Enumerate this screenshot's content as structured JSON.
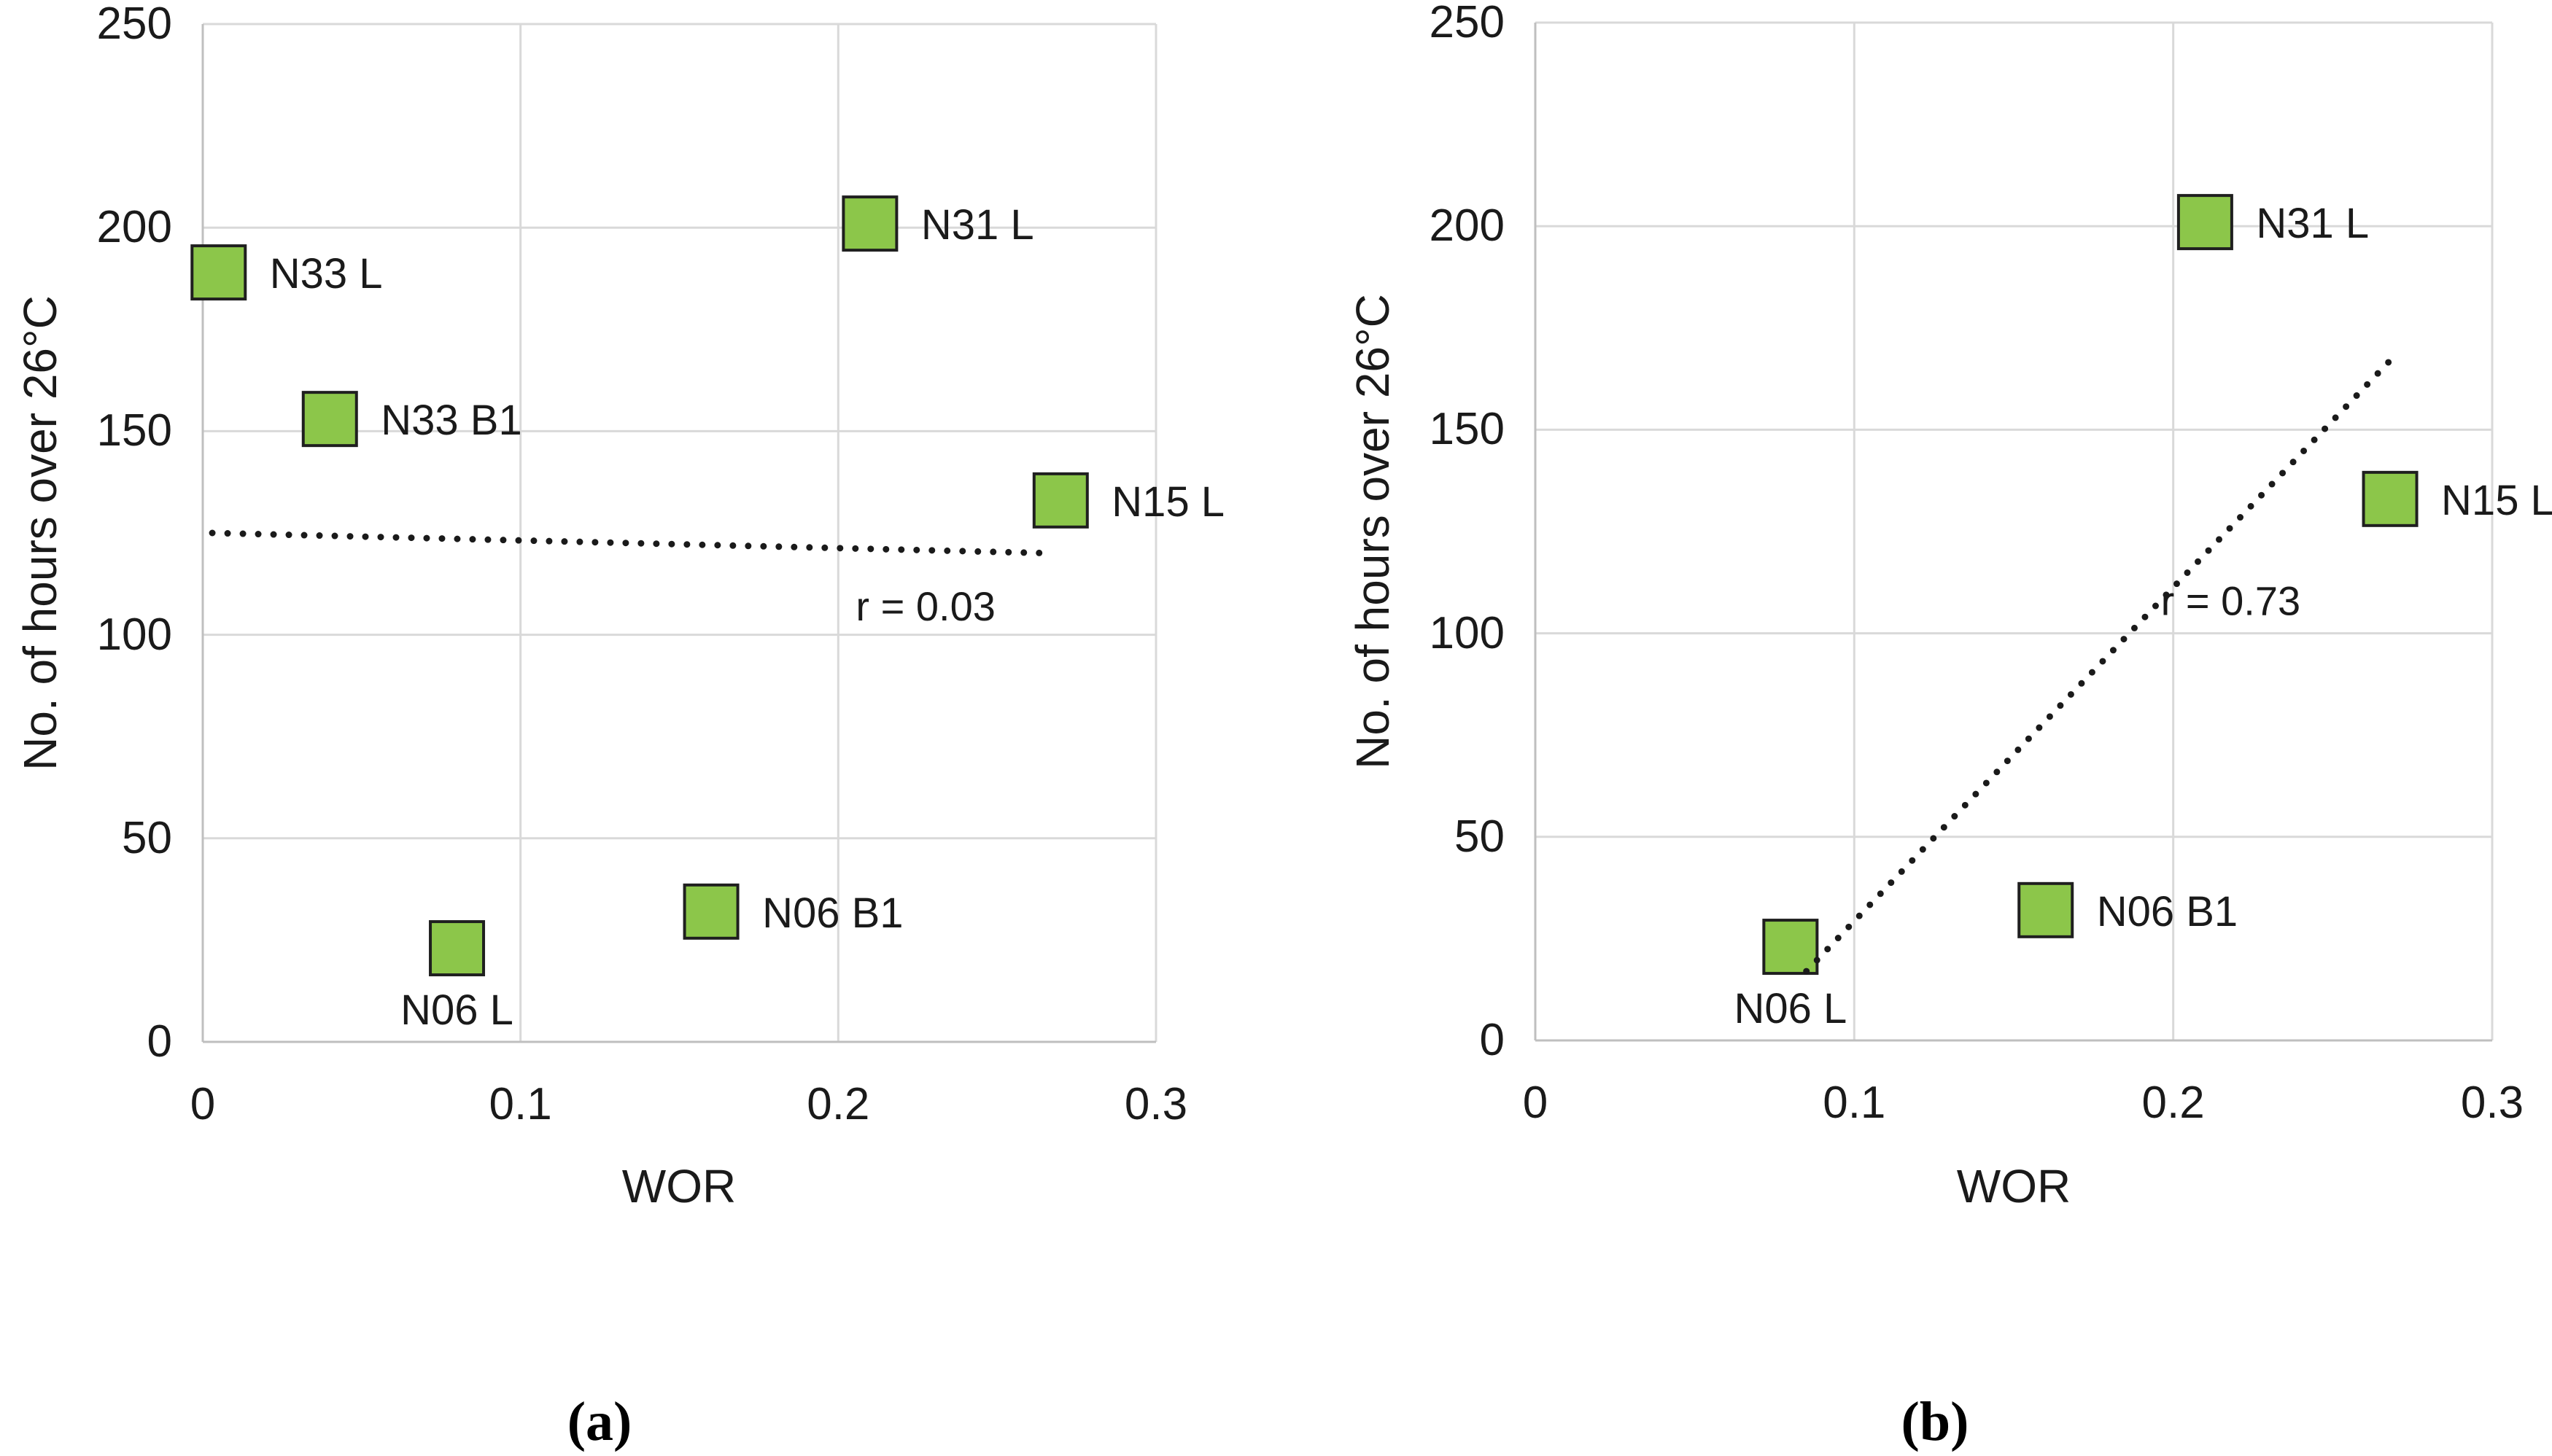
{
  "figure": {
    "background": "#ffffff",
    "panels": [
      "(a)",
      "(b)"
    ]
  },
  "style": {
    "marker_fill": "#8cc64a",
    "marker_border": "#1f1f1f",
    "grid_color": "#d9d9d9",
    "axis_color": "#bfbfbf",
    "text_color": "#1a1a1a",
    "trendline_color": "#1a1a1a"
  },
  "chart_data": [
    {
      "type": "scatter",
      "panel": "a",
      "caption": "(a)",
      "xlabel": "WOR",
      "ylabel": "No. of hours over 26°C",
      "xlim": [
        0,
        0.3
      ],
      "ylim": [
        0,
        250
      ],
      "xticks": [
        0,
        0.1,
        0.2,
        0.3
      ],
      "xtick_labels": [
        "0",
        "0.1",
        "0.2",
        "0.3"
      ],
      "yticks": [
        0,
        50,
        100,
        150,
        200,
        250
      ],
      "ytick_labels": [
        "0",
        "50",
        "100",
        "150",
        "200",
        "250"
      ],
      "grid": true,
      "legend": "none",
      "marker": "square",
      "points": [
        {
          "label": "N33 L",
          "x": 0.005,
          "y": 189,
          "label_pos": "right"
        },
        {
          "label": "N33 B1",
          "x": 0.04,
          "y": 153,
          "label_pos": "right"
        },
        {
          "label": "N31 L",
          "x": 0.21,
          "y": 201,
          "label_pos": "right"
        },
        {
          "label": "N15 L",
          "x": 0.27,
          "y": 133,
          "label_pos": "right"
        },
        {
          "label": "N06 B1",
          "x": 0.16,
          "y": 32,
          "label_pos": "right"
        },
        {
          "label": "N06 L",
          "x": 0.08,
          "y": 23,
          "label_pos": "below"
        }
      ],
      "trendline": {
        "style": "dotted",
        "x1": 0.003,
        "y1": 125,
        "x2": 0.268,
        "y2": 120
      },
      "annotation": {
        "text": "r = 0.03",
        "x": 0.2275,
        "y": 107
      }
    },
    {
      "type": "scatter",
      "panel": "b",
      "caption": "(b)",
      "xlabel": "WOR",
      "ylabel": "No. of hours over 26°C",
      "xlim": [
        0,
        0.3
      ],
      "ylim": [
        0,
        250
      ],
      "xticks": [
        0,
        0.1,
        0.2,
        0.3
      ],
      "xtick_labels": [
        "0",
        "0.1",
        "0.2",
        "0.3"
      ],
      "yticks": [
        0,
        50,
        100,
        150,
        200,
        250
      ],
      "ytick_labels": [
        "0",
        "50",
        "100",
        "150",
        "200",
        "250"
      ],
      "grid": true,
      "legend": "none",
      "marker": "square",
      "points": [
        {
          "label": "N31 L",
          "x": 0.21,
          "y": 201,
          "label_pos": "right"
        },
        {
          "label": "N15 L",
          "x": 0.268,
          "y": 133,
          "label_pos": "right"
        },
        {
          "label": "N06 B1",
          "x": 0.16,
          "y": 32,
          "label_pos": "right"
        },
        {
          "label": "N06 L",
          "x": 0.08,
          "y": 23,
          "label_pos": "below"
        }
      ],
      "trendline": {
        "style": "dotted",
        "x1": 0.085,
        "y1": 17,
        "x2": 0.268,
        "y2": 167
      },
      "annotation": {
        "text": "r = 0.73",
        "x": 0.218,
        "y": 108
      }
    }
  ]
}
